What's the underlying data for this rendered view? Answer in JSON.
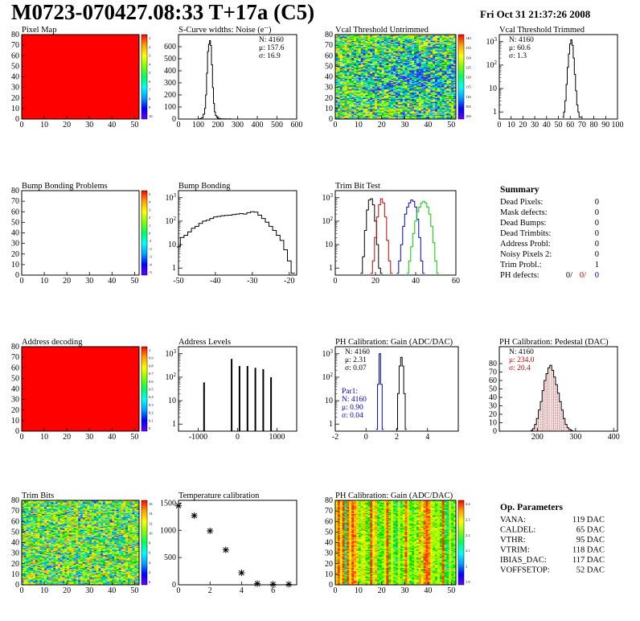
{
  "header": {
    "title": "M0723-070427.08:33 T+17a (C5)",
    "date": "Fri Oct 31 21:37:26 2008"
  },
  "chart_data": [
    {
      "id": "pixel-map",
      "type": "heatmap",
      "title": "Pixel Map",
      "xlim": [
        0,
        52
      ],
      "ylim": [
        0,
        80
      ],
      "xticks": [
        "0",
        "10",
        "20",
        "30",
        "40",
        "50"
      ],
      "yticks": [
        "0",
        "10",
        "20",
        "30",
        "40",
        "50",
        "60",
        "70",
        "80"
      ],
      "fill": "uniform",
      "colorbar": {
        "ticks": [
          "1",
          "2",
          "3",
          "4",
          "5",
          "6",
          "7",
          "8",
          "9",
          "10"
        ]
      }
    },
    {
      "id": "s-curve",
      "type": "line",
      "title": "S-Curve widths: Noise (e⁻)",
      "xlim": [
        0,
        600
      ],
      "ylim": [
        0,
        700
      ],
      "xticks": [
        "0",
        "100",
        "200",
        "300",
        "400",
        "500",
        "600"
      ],
      "yticks": [
        "0",
        "100",
        "200",
        "300",
        "400",
        "500",
        "600"
      ],
      "stats": [
        "N: 4160",
        "μ: 157.6",
        "σ: 16.9"
      ],
      "x": [
        100,
        110,
        120,
        130,
        135,
        140,
        145,
        150,
        155,
        160,
        165,
        170,
        175,
        180,
        185,
        190,
        195,
        200,
        210,
        220,
        230,
        240,
        250,
        260,
        270
      ],
      "y": [
        0,
        3,
        10,
        40,
        90,
        200,
        380,
        560,
        620,
        650,
        610,
        450,
        260,
        130,
        60,
        30,
        16,
        8,
        4,
        2,
        1,
        1,
        0,
        1,
        0
      ]
    },
    {
      "id": "vcal-untrimmed",
      "type": "heatmap",
      "title": "Vcal Threshold Untrimmed",
      "xlim": [
        0,
        52
      ],
      "ylim": [
        0,
        80
      ],
      "xticks": [
        "0",
        "10",
        "20",
        "30",
        "40",
        "50"
      ],
      "yticks": [
        "0",
        "10",
        "20",
        "30",
        "40",
        "50",
        "60",
        "70",
        "80"
      ],
      "fill": "noise",
      "colorbar": {
        "ticks": [
          "140",
          "135",
          "130",
          "125",
          "120",
          "115",
          "110",
          "105",
          "100"
        ]
      }
    },
    {
      "id": "vcal-trimmed",
      "type": "line",
      "title": "Vcal Threshold Trimmed",
      "xlim": [
        0,
        100
      ],
      "ylim": [
        0.5,
        2000
      ],
      "yscale": "log",
      "xticks": [
        "0",
        "10",
        "20",
        "30",
        "40",
        "50",
        "60",
        "70",
        "80",
        "90",
        "100"
      ],
      "ytick_values": [
        1,
        10,
        100,
        1000
      ],
      "stats": [
        "N: 4160",
        "μ: 60.6",
        "σ: 1.3"
      ],
      "x": [
        54,
        55,
        56,
        57,
        58,
        59,
        60,
        61,
        62,
        63,
        64,
        65,
        66,
        67,
        68,
        69
      ],
      "y": [
        0.6,
        1,
        3,
        15,
        80,
        300,
        800,
        1200,
        700,
        200,
        40,
        8,
        2,
        1,
        0.6,
        0.6
      ]
    },
    {
      "id": "bump-problems",
      "type": "heatmap",
      "title": "Bump Bonding Problems",
      "xlim": [
        0,
        52
      ],
      "ylim": [
        0,
        80
      ],
      "xticks": [
        "0",
        "10",
        "20",
        "30",
        "40",
        "50"
      ],
      "yticks": [
        "0",
        "10",
        "20",
        "30",
        "40",
        "50",
        "60",
        "70",
        "80"
      ],
      "fill": "none",
      "colorbar": {
        "ticks": [
          "5",
          "4",
          "3",
          "2",
          "1",
          "0",
          "-1",
          "-2",
          "-3",
          "-4",
          "-5"
        ]
      }
    },
    {
      "id": "bump-bonding",
      "type": "line",
      "title": "Bump Bonding",
      "xlim": [
        -50,
        -18
      ],
      "ylim": [
        0.5,
        2000
      ],
      "yscale": "log",
      "xticks": [
        "-50",
        "-40",
        "-30",
        "-20"
      ],
      "ytick_values": [
        1,
        10,
        100,
        1000
      ],
      "x": [
        -50,
        -49,
        -48,
        -47,
        -46,
        -45,
        -44,
        -43,
        -42,
        -41,
        -40,
        -39,
        -38,
        -37,
        -36,
        -35,
        -34,
        -33,
        -32,
        -31,
        -30,
        -29,
        -28,
        -27,
        -26,
        -25,
        -24,
        -23,
        -22,
        -21,
        -20,
        -19
      ],
      "y": [
        8,
        20,
        25,
        35,
        50,
        60,
        80,
        100,
        110,
        130,
        150,
        160,
        170,
        175,
        180,
        190,
        200,
        210,
        200,
        230,
        250,
        240,
        180,
        130,
        90,
        60,
        40,
        25,
        15,
        6,
        2,
        0.6
      ]
    },
    {
      "id": "trim-bit-test",
      "type": "line",
      "title": "Trim Bit Test",
      "xlim": [
        0,
        60
      ],
      "ylim": [
        0.5,
        2000
      ],
      "yscale": "log",
      "xticks": [
        "0",
        "20",
        "40",
        "60"
      ],
      "ytick_values": [
        1,
        10,
        100,
        1000
      ],
      "series": [
        {
          "color": "#000000",
          "x": [
            13,
            14,
            15,
            16,
            17,
            18,
            19,
            20,
            21,
            22,
            23
          ],
          "y": [
            0.6,
            3,
            40,
            300,
            800,
            900,
            500,
            100,
            10,
            1,
            0.6
          ]
        },
        {
          "color": "#cc0000",
          "x": [
            18,
            19,
            20,
            21,
            22,
            23,
            24,
            25,
            26,
            27,
            28
          ],
          "y": [
            0.6,
            2,
            20,
            150,
            500,
            900,
            600,
            150,
            15,
            2,
            0.6
          ]
        },
        {
          "color": "#0000cc",
          "x": [
            31,
            32,
            33,
            34,
            35,
            36,
            37,
            38,
            39,
            40,
            41,
            42,
            43,
            44
          ],
          "y": [
            0.6,
            2,
            10,
            60,
            200,
            400,
            600,
            800,
            700,
            400,
            120,
            20,
            2,
            0.6
          ]
        },
        {
          "color": "#00cc00",
          "x": [
            36,
            37,
            38,
            39,
            40,
            41,
            42,
            43,
            44,
            45,
            46,
            47,
            48,
            49,
            50,
            51
          ],
          "y": [
            0.6,
            2,
            8,
            30,
            100,
            250,
            400,
            600,
            700,
            600,
            400,
            200,
            60,
            12,
            2,
            0.6
          ]
        }
      ]
    },
    {
      "id": "address-decoding",
      "type": "heatmap",
      "title": "Address decoding",
      "xlim": [
        0,
        52
      ],
      "ylim": [
        0,
        80
      ],
      "xticks": [
        "0",
        "10",
        "20",
        "30",
        "40",
        "50"
      ],
      "yticks": [
        "0",
        "10",
        "20",
        "30",
        "40",
        "50",
        "60",
        "70",
        "80"
      ],
      "fill": "uniform",
      "colorbar": {
        "ticks": [
          "1",
          "0.9",
          "0.8",
          "0.7",
          "0.6",
          "0.5",
          "0.4",
          "0.3",
          "0.2",
          "0.1",
          "0"
        ]
      }
    },
    {
      "id": "address-levels",
      "type": "bar",
      "title": "Address Levels",
      "xlim": [
        -1500,
        1500
      ],
      "ylim": [
        0.5,
        2000
      ],
      "yscale": "log",
      "xticks": [
        "-1000",
        "0",
        "1000"
      ],
      "ytick_values": [
        1,
        10,
        100,
        1000
      ],
      "x": [
        -850,
        -150,
        50,
        250,
        450,
        650,
        850
      ],
      "y": [
        60,
        600,
        300,
        300,
        250,
        220,
        100
      ]
    },
    {
      "id": "ph-gain",
      "type": "line",
      "title": "PH Calibration: Gain (ADC/DAC)",
      "xlim": [
        -2,
        6
      ],
      "ylim": [
        0.5,
        2000
      ],
      "yscale": "log",
      "xticks": [
        "-2",
        "0",
        "2",
        "4"
      ],
      "ytick_values": [
        1,
        10,
        100,
        1000
      ],
      "stats": [
        "N: 4160",
        "μ: 2.31",
        "σ: 0.07"
      ],
      "stats2": [
        "Par1:",
        "N: 4160",
        "μ: 0.90",
        "σ: 0.04"
      ],
      "series": [
        {
          "color": "#000000",
          "x": [
            2.0,
            2.1,
            2.2,
            2.3,
            2.4,
            2.5,
            2.6
          ],
          "y": [
            0.6,
            20,
            300,
            700,
            300,
            20,
            0.6
          ]
        },
        {
          "color": "#0000cc",
          "x": [
            0.7,
            0.8,
            0.9,
            1.0,
            1.1
          ],
          "y": [
            0.6,
            50,
            1000,
            50,
            0.6
          ]
        }
      ]
    },
    {
      "id": "ph-pedestal",
      "type": "line",
      "title": "PH Calibration: Pedestal (DAC)",
      "xlim": [
        100,
        410
      ],
      "ylim": [
        0,
        100
      ],
      "xticks": [
        "200",
        "300",
        "400"
      ],
      "yticks": [
        "0",
        "10",
        "20",
        "30",
        "40",
        "50",
        "60",
        "70",
        "80"
      ],
      "stats": [
        "N: 4160",
        "μ: 234.0",
        "σ: 20.4"
      ],
      "x": [
        185,
        190,
        195,
        200,
        205,
        210,
        215,
        220,
        225,
        230,
        235,
        240,
        245,
        250,
        255,
        260,
        265,
        270,
        275,
        280,
        285,
        290
      ],
      "y": [
        1,
        3,
        8,
        15,
        25,
        35,
        48,
        60,
        68,
        75,
        78,
        72,
        64,
        55,
        45,
        35,
        25,
        15,
        8,
        4,
        2,
        1
      ]
    },
    {
      "id": "trim-bits",
      "type": "heatmap",
      "title": "Trim Bits",
      "xlim": [
        0,
        52
      ],
      "ylim": [
        0,
        80
      ],
      "xticks": [
        "0",
        "10",
        "20",
        "30",
        "40",
        "50"
      ],
      "yticks": [
        "0",
        "10",
        "20",
        "30",
        "40",
        "50",
        "60",
        "70",
        "80"
      ],
      "fill": "noise",
      "colorbar": {
        "ticks": [
          "16",
          "14",
          "12",
          "10",
          "8",
          "6",
          "4",
          "2",
          "0"
        ]
      }
    },
    {
      "id": "temperature",
      "type": "scatter",
      "title": "Temperature calibration",
      "xlim": [
        0,
        7.5
      ],
      "ylim": [
        0,
        1550
      ],
      "xticks": [
        "0",
        "2",
        "4",
        "6"
      ],
      "yticks": [
        "0",
        "500",
        "1000",
        "1500"
      ],
      "x": [
        0,
        1,
        2,
        3,
        4,
        5,
        6,
        7
      ],
      "y": [
        1450,
        1270,
        990,
        640,
        220,
        20,
        10,
        10
      ]
    },
    {
      "id": "ph-gain-map",
      "type": "heatmap",
      "title": "PH Calibration: Gain (ADC/DAC)",
      "xlim": [
        0,
        52
      ],
      "ylim": [
        0,
        80
      ],
      "xticks": [
        "0",
        "10",
        "20",
        "30",
        "40",
        "50"
      ],
      "yticks": [
        "0",
        "10",
        "20",
        "30",
        "40",
        "50",
        "60",
        "70",
        "80"
      ],
      "fill": "columns",
      "colorbar": {
        "ticks": [
          "2.4",
          "2.3",
          "2.2",
          "2.1",
          "2",
          "1.9"
        ]
      }
    }
  ],
  "summary": {
    "title": "Summary",
    "rows": [
      {
        "label": "Dead Pixels:",
        "value": "0"
      },
      {
        "label": "Mask defects:",
        "value": "0"
      },
      {
        "label": "Dead Bumps:",
        "value": "0"
      },
      {
        "label": "Dead Trimbits:",
        "value": "0"
      },
      {
        "label": "Address Probl:",
        "value": "0"
      },
      {
        "label": "Noisy Pixels 2:",
        "value": "0"
      },
      {
        "label": "Trim Probl.:",
        "value": "1"
      }
    ],
    "ph_label": "PH defects:",
    "ph_values": [
      {
        "text": "0/",
        "color": "#000000"
      },
      {
        "text": "0/",
        "color": "#cc0000"
      },
      {
        "text": "0",
        "color": "#0000cc"
      }
    ]
  },
  "op_params": {
    "title": "Op. Parameters",
    "rows": [
      {
        "label": "VANA:",
        "value": "119 DAC"
      },
      {
        "label": "CALDEL:",
        "value": "65 DAC"
      },
      {
        "label": "VTHR:",
        "value": "95 DAC"
      },
      {
        "label": "VTRIM:",
        "value": "118 DAC"
      },
      {
        "label": "IBIAS_DAC:",
        "value": "117 DAC"
      },
      {
        "label": "VOFFSETOP:",
        "value": "52 DAC"
      }
    ]
  }
}
